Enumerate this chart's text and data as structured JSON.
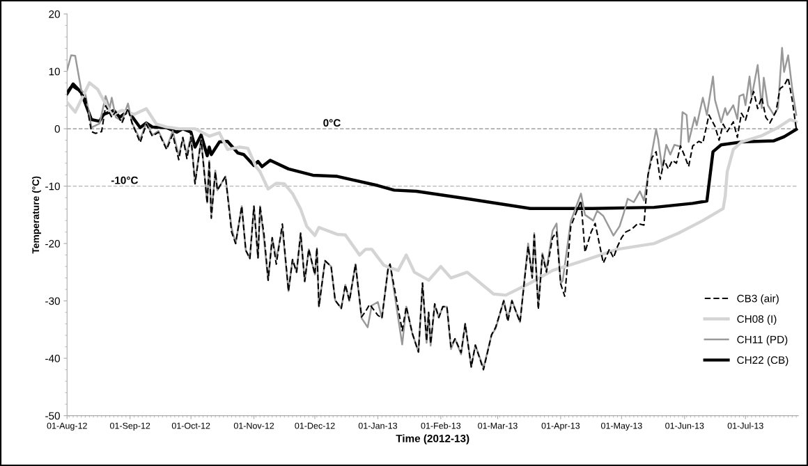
{
  "chart_data": {
    "type": "line",
    "xlabel": "Time (2012-13)",
    "ylabel": "Temperature (°C)",
    "xlim": [
      "2012-08-01",
      "2013-07-27"
    ],
    "xticks": [
      {
        "value": "2012-08-01",
        "label": "01-Aug-12"
      },
      {
        "value": "2012-09-01",
        "label": "01-Sep-12"
      },
      {
        "value": "2012-10-01",
        "label": "01-Oct-12"
      },
      {
        "value": "2012-11-01",
        "label": "01-Nov-12"
      },
      {
        "value": "2012-12-01",
        "label": "01-Dec-12"
      },
      {
        "value": "2013-01-01",
        "label": "01-Jan-13"
      },
      {
        "value": "2013-02-01",
        "label": "01-Feb-13"
      },
      {
        "value": "2013-03-01",
        "label": "01-Mar-13"
      },
      {
        "value": "2013-04-01",
        "label": "01-Apr-13"
      },
      {
        "value": "2013-05-01",
        "label": "01-May-13"
      },
      {
        "value": "2013-06-01",
        "label": "01-Jun-13"
      },
      {
        "value": "2013-07-01",
        "label": "01-Jul-13"
      }
    ],
    "ylim": [
      -50,
      20
    ],
    "yticks": [
      -50,
      -40,
      -30,
      -20,
      -10,
      0,
      10,
      20
    ],
    "grid": false,
    "legend": "bottom right",
    "marker": "none",
    "ref_lines": [
      {
        "axis": "y",
        "value": 0,
        "label": "0°C",
        "color": "#8c8c8c",
        "line_style": "dashed"
      },
      {
        "axis": "y",
        "value": -10,
        "label": "-10°C",
        "color": "#b4b4b4",
        "line_style": "dashed"
      }
    ],
    "series": [
      {
        "name": "CB3 (air)",
        "color": "#000000",
        "line_style": "dashed",
        "x": [
          "2012-08-01",
          "2012-08-03",
          "2012-08-07",
          "2012-08-10",
          "2012-08-13",
          "2012-08-15",
          "2012-08-18",
          "2012-08-20",
          "2012-08-23",
          "2012-08-25",
          "2012-08-28",
          "2012-08-31",
          "2012-09-02",
          "2012-09-06",
          "2012-09-09",
          "2012-09-12",
          "2012-09-15",
          "2012-09-19",
          "2012-09-22",
          "2012-09-25",
          "2012-09-27",
          "2012-09-29",
          "2012-10-01",
          "2012-10-03",
          "2012-10-06",
          "2012-10-09",
          "2012-10-10",
          "2012-10-11",
          "2012-10-13",
          "2012-10-14",
          "2012-10-18",
          "2012-10-21",
          "2012-10-23",
          "2012-10-26",
          "2012-10-28",
          "2012-10-30",
          "2012-11-01",
          "2012-11-03",
          "2012-11-04",
          "2012-11-06",
          "2012-11-08",
          "2012-11-10",
          "2012-11-12",
          "2012-11-15",
          "2012-11-18",
          "2012-11-20",
          "2012-11-22",
          "2012-11-24",
          "2012-11-26",
          "2012-11-28",
          "2012-12-01",
          "2012-12-02",
          "2012-12-03",
          "2012-12-06",
          "2012-12-09",
          "2012-12-11",
          "2012-12-14",
          "2012-12-16",
          "2012-12-18",
          "2012-12-21",
          "2012-12-24",
          "2012-12-26",
          "2012-12-28",
          "2013-01-01",
          "2013-01-03",
          "2013-01-06",
          "2013-01-07",
          "2013-01-13",
          "2013-01-15",
          "2013-01-18",
          "2013-01-21",
          "2013-01-23",
          "2013-01-25",
          "2013-01-26",
          "2013-01-27",
          "2013-01-29",
          "2013-01-31",
          "2013-02-02",
          "2013-02-04",
          "2013-02-06",
          "2013-02-08",
          "2013-02-11",
          "2013-02-13",
          "2013-02-16",
          "2013-02-18",
          "2013-02-22",
          "2013-02-26",
          "2013-02-28",
          "2013-03-04",
          "2013-03-06",
          "2013-03-08",
          "2013-03-12",
          "2013-03-16",
          "2013-03-18",
          "2013-03-19",
          "2013-03-21",
          "2013-03-23",
          "2013-03-25",
          "2013-03-28",
          "2013-03-30",
          "2013-04-01",
          "2013-04-03",
          "2013-04-06",
          "2013-04-11",
          "2013-04-13",
          "2013-04-16",
          "2013-04-18",
          "2013-04-22",
          "2013-04-25",
          "2013-04-27",
          "2013-04-29",
          "2013-05-01",
          "2013-05-03",
          "2013-05-06",
          "2013-05-09",
          "2013-05-12",
          "2013-05-14",
          "2013-05-16",
          "2013-05-18",
          "2013-05-20",
          "2013-05-22",
          "2013-05-24",
          "2013-05-26",
          "2013-05-28",
          "2013-05-30",
          "2013-06-01",
          "2013-06-03",
          "2013-06-05",
          "2013-06-08",
          "2013-06-10",
          "2013-06-13",
          "2013-06-16",
          "2013-06-18",
          "2013-06-20",
          "2013-06-22",
          "2013-06-25",
          "2013-06-27",
          "2013-06-29",
          "2013-07-01",
          "2013-07-03",
          "2013-07-05",
          "2013-07-07",
          "2013-07-09",
          "2013-07-11",
          "2013-07-13",
          "2013-07-16",
          "2013-07-18",
          "2013-07-20",
          "2013-07-22",
          "2013-07-24",
          "2013-07-26"
        ],
        "values": [
          6.5,
          7.5,
          6.5,
          5.5,
          -0.5,
          -0.8,
          -0.5,
          4,
          2,
          3,
          1,
          3.5,
          1,
          -2.4,
          0.8,
          -1.3,
          -0.6,
          -3.6,
          -1,
          -5.4,
          -1.5,
          -5.2,
          -1.5,
          -9.6,
          -2,
          -13,
          -5.6,
          -15.6,
          -7.5,
          -10.7,
          -8.3,
          -18,
          -20,
          -13.5,
          -21.2,
          -22.6,
          -13.5,
          -22.5,
          -13.5,
          -18.5,
          -26.4,
          -19,
          -23.6,
          -16.6,
          -28.3,
          -22.8,
          -25,
          -18.2,
          -26.6,
          -21,
          -25.4,
          -20.8,
          -31,
          -23,
          -24,
          -29.9,
          -31.3,
          -27.2,
          -30,
          -23.6,
          -32.8,
          -31.8,
          -30.6,
          -32.5,
          -33,
          -24.5,
          -23.6,
          -35.2,
          -31,
          -35.7,
          -38.9,
          -26.9,
          -37,
          -32,
          -37.5,
          -30.5,
          -32.9,
          -31,
          -31,
          -38,
          -36.6,
          -39,
          -34,
          -41.5,
          -37.7,
          -42,
          -35.9,
          -34.6,
          -30,
          -33.6,
          -30,
          -33.7,
          -20.5,
          -26,
          -18.5,
          -31.5,
          -22,
          -25,
          -19,
          -18,
          -27,
          -29.2,
          -17,
          -12.5,
          -21.5,
          -18,
          -16.5,
          -23.4,
          -21,
          -22.5,
          -20.5,
          -19,
          -18,
          -17.5,
          -16.5,
          -16.8,
          -8,
          -5,
          -4,
          -8.8,
          -5.5,
          -7,
          -5.5,
          -6,
          -3,
          -4.7,
          -6.6,
          -3,
          -2.2,
          -2.5,
          2.4,
          0.4,
          -2,
          0.8,
          -0.5,
          1.2,
          -1.5,
          2.7,
          1.5,
          4,
          6.5,
          3.5,
          5.5,
          2,
          1,
          3,
          7,
          7.5,
          8.9,
          5,
          0
        ]
      },
      {
        "name": "CH08 (I)",
        "color": "#d4d4d4",
        "line_style": "solid",
        "x": [
          "2012-08-01",
          "2012-08-05",
          "2012-08-12",
          "2012-08-16",
          "2012-08-23",
          "2012-08-28",
          "2012-09-03",
          "2012-09-09",
          "2012-09-14",
          "2012-09-19",
          "2012-09-25",
          "2012-10-03",
          "2012-10-10",
          "2012-10-15",
          "2012-10-19",
          "2012-10-25",
          "2012-10-29",
          "2012-11-02",
          "2012-11-04",
          "2012-11-08",
          "2012-11-12",
          "2012-11-16",
          "2012-11-20",
          "2012-11-24",
          "2012-11-27",
          "2012-12-01",
          "2012-12-03",
          "2012-12-12",
          "2012-12-16",
          "2012-12-23",
          "2012-12-26",
          "2012-12-29",
          "2013-01-04",
          "2013-01-11",
          "2013-01-15",
          "2013-01-19",
          "2013-01-26",
          "2013-02-01",
          "2013-02-06",
          "2013-02-14",
          "2013-02-27",
          "2013-03-05",
          "2013-03-17",
          "2013-03-28",
          "2013-04-14",
          "2013-04-29",
          "2013-05-17",
          "2013-05-29",
          "2013-06-10",
          "2013-06-20",
          "2013-06-21",
          "2013-06-22",
          "2013-06-25",
          "2013-06-29",
          "2013-07-09",
          "2013-07-17",
          "2013-07-23",
          "2013-07-26"
        ],
        "values": [
          4.6,
          2.9,
          8.0,
          6.9,
          2.4,
          3.2,
          2.5,
          3.5,
          0.8,
          0.3,
          0,
          0,
          -1.3,
          -0.7,
          -3.6,
          -3.2,
          -3.4,
          -6.6,
          -7.5,
          -10.5,
          -9.5,
          -9.6,
          -11.3,
          -14,
          -17,
          -18.6,
          -17.2,
          -18.4,
          -18.5,
          -22,
          -21,
          -21,
          -23.8,
          -24.7,
          -22,
          -25,
          -26.4,
          -24,
          -26,
          -25,
          -28.8,
          -29,
          -26.9,
          -24.7,
          -22.8,
          -21,
          -20,
          -18.2,
          -16,
          -13.9,
          -11.8,
          -7.5,
          -3.6,
          -2.3,
          -1.2,
          0.2,
          1.6,
          1.2
        ]
      },
      {
        "name": "CH11 (PD)",
        "color": "#999999",
        "line_style": "solid",
        "x": [
          "2012-08-01",
          "2012-08-03",
          "2012-08-05",
          "2012-08-08",
          "2012-08-10",
          "2012-08-12",
          "2012-08-13",
          "2012-08-17",
          "2012-08-20",
          "2012-08-22",
          "2012-08-23",
          "2012-08-25",
          "2012-08-28",
          "2012-08-31",
          "2012-09-02",
          "2012-09-06",
          "2012-09-09",
          "2012-09-12",
          "2012-09-15",
          "2012-09-19",
          "2012-09-22",
          "2012-09-25",
          "2012-09-27",
          "2012-09-29",
          "2012-10-01",
          "2012-10-03",
          "2012-10-06",
          "2012-10-09",
          "2012-10-10",
          "2012-10-11",
          "2012-10-13",
          "2012-10-14",
          "2012-10-18",
          "2012-10-21",
          "2012-10-23",
          "2012-10-26",
          "2012-10-28",
          "2012-10-30",
          "2012-11-01",
          "2012-11-03",
          "2012-11-04",
          "2012-11-06",
          "2012-11-08",
          "2012-11-10",
          "2012-11-12",
          "2012-11-15",
          "2012-11-18",
          "2012-11-20",
          "2012-11-22",
          "2012-11-24",
          "2012-11-26",
          "2012-11-28",
          "2012-12-01",
          "2012-12-02",
          "2012-12-03",
          "2012-12-06",
          "2012-12-09",
          "2012-12-11",
          "2012-12-14",
          "2012-12-16",
          "2012-12-18",
          "2012-12-21",
          "2012-12-24",
          "2012-12-27",
          "2012-12-29",
          "2013-01-01",
          "2013-01-03",
          "2013-01-06",
          "2013-01-07",
          "2013-01-13",
          "2013-01-15",
          "2013-01-18",
          "2013-01-21",
          "2013-01-23",
          "2013-01-25",
          "2013-01-26",
          "2013-01-27",
          "2013-01-29",
          "2013-01-31",
          "2013-02-02",
          "2013-02-04",
          "2013-02-06",
          "2013-02-08",
          "2013-02-11",
          "2013-02-13",
          "2013-02-16",
          "2013-02-18",
          "2013-02-22",
          "2013-02-26",
          "2013-02-28",
          "2013-03-04",
          "2013-03-06",
          "2013-03-08",
          "2013-03-12",
          "2013-03-16",
          "2013-03-18",
          "2013-03-19",
          "2013-03-21",
          "2013-03-23",
          "2013-03-25",
          "2013-03-28",
          "2013-03-30",
          "2013-04-01",
          "2013-04-02",
          "2013-04-06",
          "2013-04-11",
          "2013-04-13",
          "2013-04-17",
          "2013-04-19",
          "2013-04-22",
          "2013-04-27",
          "2013-04-30",
          "2013-05-02",
          "2013-05-04",
          "2013-05-07",
          "2013-05-10",
          "2013-05-12",
          "2013-05-16",
          "2013-05-18",
          "2013-05-19",
          "2013-05-21",
          "2013-05-23",
          "2013-05-25",
          "2013-05-27",
          "2013-05-30",
          "2013-05-31",
          "2013-06-02",
          "2013-06-03",
          "2013-06-06",
          "2013-06-07",
          "2013-06-10",
          "2013-06-12",
          "2013-06-15",
          "2013-06-16",
          "2013-06-19",
          "2013-06-21",
          "2013-06-22",
          "2013-06-25",
          "2013-06-27",
          "2013-06-28",
          "2013-06-30",
          "2013-07-01",
          "2013-07-03",
          "2013-07-04",
          "2013-07-07",
          "2013-07-09",
          "2013-07-10",
          "2013-07-12",
          "2013-07-15",
          "2013-07-17",
          "2013-07-19",
          "2013-07-20",
          "2013-07-22",
          "2013-07-24",
          "2013-07-26"
        ],
        "values": [
          10.2,
          12.8,
          12.7,
          6.7,
          6,
          2.4,
          0.2,
          0.9,
          5.7,
          3.6,
          5.4,
          2,
          1.4,
          4.4,
          1,
          -1.9,
          1,
          -1.1,
          -0.4,
          -3.4,
          -0.4,
          -4.7,
          -1.7,
          -4.4,
          -1.2,
          -9.4,
          -1.8,
          -12.9,
          -5.6,
          -15.2,
          -7.3,
          -10.7,
          -8.3,
          -17.3,
          -20,
          -13.5,
          -21.2,
          -22.6,
          -13.5,
          -22.5,
          -13.5,
          -19.5,
          -26.4,
          -19,
          -22.6,
          -17.3,
          -28.3,
          -22.8,
          -25,
          -18.2,
          -26.6,
          -21,
          -25.4,
          -20.8,
          -31,
          -23,
          -24,
          -29.9,
          -31.3,
          -27.2,
          -30,
          -23.6,
          -33,
          -34.6,
          -30.8,
          -30.2,
          -33,
          -24.5,
          -23.6,
          -37.6,
          -31,
          -35.7,
          -38.9,
          -26.9,
          -37.3,
          -32,
          -37.8,
          -30.7,
          -32.9,
          -31,
          -31,
          -38.4,
          -36.6,
          -39.3,
          -34,
          -41.5,
          -37.7,
          -41.7,
          -35.9,
          -34.8,
          -29.9,
          -33,
          -29.9,
          -33.7,
          -20,
          -25.8,
          -18.2,
          -31,
          -21.7,
          -24.6,
          -17.8,
          -16.5,
          -26.9,
          -26.5,
          -16.1,
          -11.3,
          -15,
          -16,
          -14.3,
          -15.2,
          -18.6,
          -17,
          -14.8,
          -12.2,
          -12.8,
          -10.9,
          -12.5,
          -4,
          -0.1,
          -1.8,
          -7,
          -2.8,
          -4.5,
          -2.8,
          -3.1,
          2.9,
          2.4,
          -2.3,
          2,
          0.6,
          5.4,
          2.4,
          9.1,
          5,
          1.1,
          3.6,
          2.4,
          4.1,
          1.7,
          5.7,
          6,
          4.1,
          9.1,
          5.5,
          11.1,
          3.6,
          8.9,
          4.1,
          2.4,
          3.6,
          14.1,
          9.9,
          12.8,
          7,
          2.4
        ]
      },
      {
        "name": "CH22 (CB)",
        "color": "#000000",
        "line_style": "solid",
        "x": [
          "2012-08-01",
          "2012-08-04",
          "2012-08-08",
          "2012-08-13",
          "2012-08-17",
          "2012-08-19",
          "2012-08-24",
          "2012-08-27",
          "2012-08-31",
          "2012-09-06",
          "2012-09-09",
          "2012-09-12",
          "2012-09-19",
          "2012-09-24",
          "2012-09-27",
          "2012-10-01",
          "2012-10-03",
          "2012-10-06",
          "2012-10-09",
          "2012-10-10",
          "2012-10-11",
          "2012-10-15",
          "2012-10-19",
          "2012-10-24",
          "2012-10-27",
          "2012-11-01",
          "2012-11-03",
          "2012-11-05",
          "2012-11-09",
          "2012-11-18",
          "2012-11-30",
          "2012-12-12",
          "2013-01-01",
          "2013-01-09",
          "2013-01-20",
          "2013-02-14",
          "2013-03-17",
          "2013-04-17",
          "2013-05-17",
          "2013-06-05",
          "2013-06-12",
          "2013-06-15",
          "2013-06-19",
          "2013-06-29",
          "2013-07-15",
          "2013-07-20",
          "2013-07-26"
        ],
        "values": [
          6.1,
          7.8,
          6.3,
          1.6,
          1.3,
          2.5,
          3.2,
          2.0,
          3.1,
          0.2,
          1.0,
          0.3,
          0.2,
          -0.6,
          0,
          -0.6,
          -3.2,
          -1.1,
          -4.7,
          -3.2,
          -4.5,
          -2.3,
          -2.2,
          -4.2,
          -4.5,
          -6.4,
          -5.7,
          -6.6,
          -5.5,
          -7,
          -8.1,
          -8.3,
          -9.9,
          -10.7,
          -10.9,
          -12.2,
          -13.9,
          -13.9,
          -13.7,
          -13,
          -12.6,
          -4,
          -2.8,
          -2.3,
          -2.1,
          -1.4,
          -0.1
        ]
      }
    ]
  }
}
